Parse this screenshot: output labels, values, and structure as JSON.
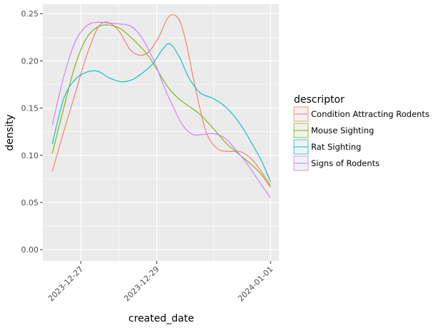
{
  "chart_data": {
    "type": "line",
    "title": "",
    "xlabel": "created_date",
    "ylabel": "density",
    "x_tick_labels": [
      "2023-12-27",
      "2023-12-29",
      "2024-01-01"
    ],
    "x_tick_days": [
      1,
      3,
      6
    ],
    "xlim_days": [
      0.0,
      6.22
    ],
    "ylim": [
      -0.012,
      0.26
    ],
    "y_tick_values": [
      0.0,
      0.05,
      0.1,
      0.15,
      0.2,
      0.25
    ],
    "y_tick_labels": [
      "0.00",
      "0.05",
      "0.10",
      "0.15",
      "0.20",
      "0.25"
    ],
    "grid": true,
    "legend": {
      "title": "descriptor",
      "position": "right"
    },
    "series": [
      {
        "name": "Condition Attracting Rodents",
        "color": "#F8766D",
        "x": [
          0.25,
          0.55,
          0.85,
          1.15,
          1.45,
          1.7,
          2.0,
          2.3,
          2.55,
          2.8,
          3.05,
          3.3,
          3.5,
          3.65,
          3.8,
          4.0,
          4.3,
          4.6,
          4.9,
          5.2,
          5.5,
          5.75,
          6.0
        ],
        "y": [
          0.083,
          0.125,
          0.165,
          0.205,
          0.235,
          0.241,
          0.232,
          0.212,
          0.206,
          0.21,
          0.225,
          0.246,
          0.248,
          0.238,
          0.215,
          0.175,
          0.125,
          0.107,
          0.104,
          0.104,
          0.096,
          0.083,
          0.068
        ]
      },
      {
        "name": "Mouse Sighting",
        "color": "#7CAE00",
        "x": [
          0.25,
          0.55,
          0.85,
          1.15,
          1.45,
          1.75,
          2.05,
          2.4,
          2.75,
          3.05,
          3.3,
          3.55,
          3.85,
          4.15,
          4.5,
          4.85,
          5.2,
          5.5,
          5.75,
          6.0
        ],
        "y": [
          0.102,
          0.15,
          0.195,
          0.224,
          0.236,
          0.238,
          0.234,
          0.222,
          0.207,
          0.188,
          0.172,
          0.161,
          0.152,
          0.143,
          0.128,
          0.112,
          0.1,
          0.09,
          0.08,
          0.066
        ]
      },
      {
        "name": "Rat Sighting",
        "color": "#00BFC4",
        "x": [
          0.25,
          0.55,
          0.85,
          1.15,
          1.45,
          1.75,
          2.05,
          2.35,
          2.65,
          2.9,
          3.15,
          3.35,
          3.6,
          3.85,
          4.15,
          4.5,
          4.85,
          5.2,
          5.5,
          5.75,
          6.0
        ],
        "y": [
          0.112,
          0.16,
          0.18,
          0.188,
          0.189,
          0.182,
          0.178,
          0.18,
          0.188,
          0.197,
          0.212,
          0.218,
          0.204,
          0.182,
          0.166,
          0.16,
          0.15,
          0.133,
          0.113,
          0.095,
          0.072
        ]
      },
      {
        "name": "Signs of Rodents",
        "color": "#C77CFF",
        "x": [
          0.25,
          0.55,
          0.85,
          1.15,
          1.45,
          1.75,
          2.05,
          2.35,
          2.65,
          2.95,
          3.2,
          3.45,
          3.7,
          3.95,
          4.2,
          4.5,
          4.8,
          5.1,
          5.4,
          5.7,
          6.0
        ],
        "y": [
          0.132,
          0.183,
          0.22,
          0.237,
          0.241,
          0.24,
          0.239,
          0.236,
          0.222,
          0.198,
          0.172,
          0.15,
          0.131,
          0.122,
          0.122,
          0.123,
          0.118,
          0.105,
          0.09,
          0.072,
          0.055
        ]
      }
    ]
  }
}
